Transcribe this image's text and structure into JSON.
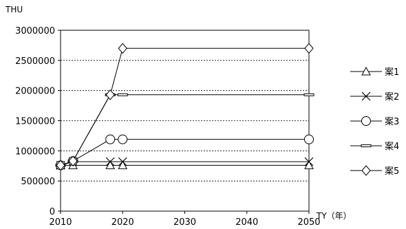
{
  "chart_data": {
    "type": "line",
    "ylabel": "THU",
    "xlabel": "TY（年）",
    "xlim": [
      2010,
      2050
    ],
    "ylim": [
      0,
      3000000
    ],
    "x_ticks": [
      2010,
      2020,
      2030,
      2040,
      2050
    ],
    "y_ticks": [
      0,
      500000,
      1000000,
      1500000,
      2000000,
      2500000,
      3000000
    ],
    "grid": "horizontal dotted",
    "legend_position": "right",
    "series": [
      {
        "name": "案1",
        "marker": "triangle",
        "points": [
          [
            2010,
            760000
          ],
          [
            2012,
            760000
          ],
          [
            2018,
            760000
          ],
          [
            2020,
            760000
          ],
          [
            2050,
            760000
          ]
        ]
      },
      {
        "name": "案2",
        "marker": "x",
        "points": [
          [
            2010,
            760000
          ],
          [
            2012,
            820000
          ],
          [
            2018,
            820000
          ],
          [
            2020,
            820000
          ],
          [
            2050,
            820000
          ]
        ]
      },
      {
        "name": "案3",
        "marker": "circle",
        "points": [
          [
            2010,
            760000
          ],
          [
            2012,
            830000
          ],
          [
            2018,
            1190000
          ],
          [
            2020,
            1190000
          ],
          [
            2050,
            1190000
          ]
        ]
      },
      {
        "name": "案4",
        "marker": "dash",
        "points": [
          [
            2010,
            760000
          ],
          [
            2012,
            830000
          ],
          [
            2018,
            1930000
          ],
          [
            2020,
            1930000
          ],
          [
            2050,
            1930000
          ]
        ]
      },
      {
        "name": "案5",
        "marker": "diamond",
        "points": [
          [
            2010,
            760000
          ],
          [
            2012,
            830000
          ],
          [
            2018,
            1930000
          ],
          [
            2020,
            2700000
          ],
          [
            2050,
            2700000
          ]
        ]
      }
    ]
  }
}
